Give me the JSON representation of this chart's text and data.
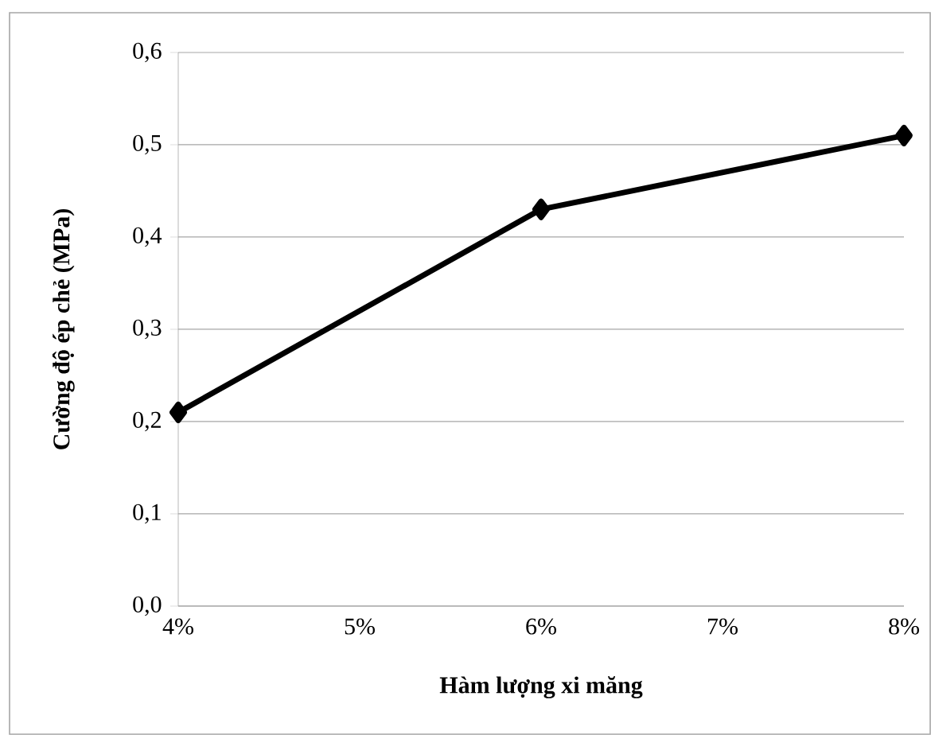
{
  "chart_data": {
    "type": "line",
    "xlabel": "Hàm lượng xi măng",
    "ylabel": "Cường độ ép chẻ (MPa)",
    "x": [
      4,
      6,
      8
    ],
    "series": [
      {
        "color": "#000000",
        "values": [
          0.21,
          0.43,
          0.51
        ]
      }
    ],
    "xlim": [
      4,
      8
    ],
    "xticks": [
      {
        "value": 4,
        "label": "4%"
      },
      {
        "value": 5,
        "label": "5%"
      },
      {
        "value": 6,
        "label": "6%"
      },
      {
        "value": 7,
        "label": "7%"
      },
      {
        "value": 8,
        "label": "8%"
      }
    ],
    "ylim": [
      0,
      0.6
    ],
    "yticks": [
      {
        "value": 0,
        "label": "0,0"
      },
      {
        "value": 0.1,
        "label": "0,1"
      },
      {
        "value": 0.2,
        "label": "0,2"
      },
      {
        "value": 0.3,
        "label": "0,3"
      },
      {
        "value": 0.4,
        "label": "0,4"
      },
      {
        "value": 0.5,
        "label": "0,5"
      },
      {
        "value": 0.6,
        "label": "0,6"
      }
    ],
    "grid": "y",
    "marker": "diamond",
    "line_style": "solid"
  }
}
